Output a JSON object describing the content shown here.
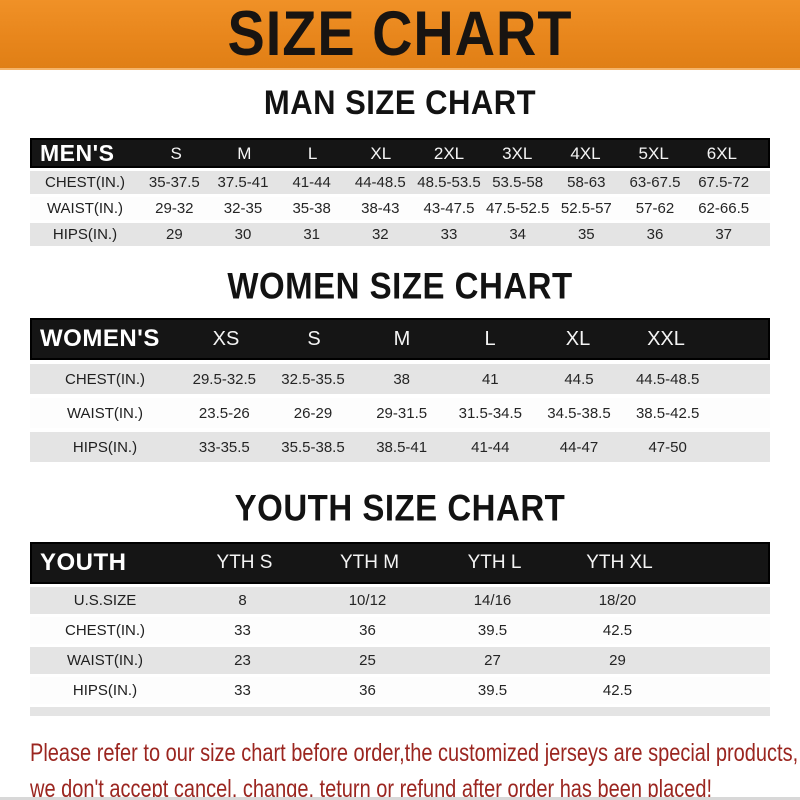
{
  "banner": {
    "title": "SIZE CHART",
    "bg_color": "#E8861C",
    "text_color": "#181411"
  },
  "sections": [
    {
      "title": "MAN SIZE CHART",
      "header_label": "MEN'S",
      "sizes": [
        "S",
        "M",
        "L",
        "XL",
        "2XL",
        "3XL",
        "4XL",
        "5XL",
        "6XL"
      ],
      "rows": [
        {
          "label": "CHEST(IN.)",
          "values": [
            "35-37.5",
            "37.5-41",
            "41-44",
            "44-48.5",
            "48.5-53.5",
            "53.5-58",
            "58-63",
            "63-67.5",
            "67.5-72"
          ]
        },
        {
          "label": "WAIST(IN.)",
          "values": [
            "29-32",
            "32-35",
            "35-38",
            "38-43",
            "43-47.5",
            "47.5-52.5",
            "52.5-57",
            "57-62",
            "62-66.5"
          ]
        },
        {
          "label": "HIPS(IN.)",
          "values": [
            "29",
            "30",
            "31",
            "32",
            "33",
            "34",
            "35",
            "36",
            "37"
          ]
        }
      ]
    },
    {
      "title": "WOMEN SIZE CHART",
      "header_label": "WOMEN'S",
      "sizes": [
        "XS",
        "S",
        "M",
        "L",
        "XL",
        "XXL"
      ],
      "rows": [
        {
          "label": "CHEST(IN.)",
          "values": [
            "29.5-32.5",
            "32.5-35.5",
            "38",
            "41",
            "44.5",
            "44.5-48.5"
          ]
        },
        {
          "label": "WAIST(IN.)",
          "values": [
            "23.5-26",
            "26-29",
            "29-31.5",
            "31.5-34.5",
            "34.5-38.5",
            "38.5-42.5"
          ]
        },
        {
          "label": "HIPS(IN.)",
          "values": [
            "33-35.5",
            "35.5-38.5",
            "38.5-41",
            "41-44",
            "44-47",
            "47-50"
          ]
        }
      ]
    },
    {
      "title": "YOUTH SIZE CHART",
      "header_label": "YOUTH",
      "sizes": [
        "YTH S",
        "YTH M",
        "YTH L",
        "YTH XL"
      ],
      "rows": [
        {
          "label": "U.S.SIZE",
          "values": [
            "8",
            "10/12",
            "14/16",
            "18/20"
          ]
        },
        {
          "label": "CHEST(IN.)",
          "values": [
            "33",
            "36",
            "39.5",
            "42.5"
          ]
        },
        {
          "label": "WAIST(IN.)",
          "values": [
            "23",
            "25",
            "27",
            "29"
          ]
        },
        {
          "label": "HIPS(IN.)",
          "values": [
            "33",
            "36",
            "39.5",
            "42.5"
          ]
        }
      ]
    }
  ],
  "footer": {
    "lines": [
      "Please refer to our size chart before order,the customized jerseys are special products,",
      "we don't accept cancel, change, teturn or refund after order has been placed!"
    ],
    "text_color": "#9b2620"
  }
}
